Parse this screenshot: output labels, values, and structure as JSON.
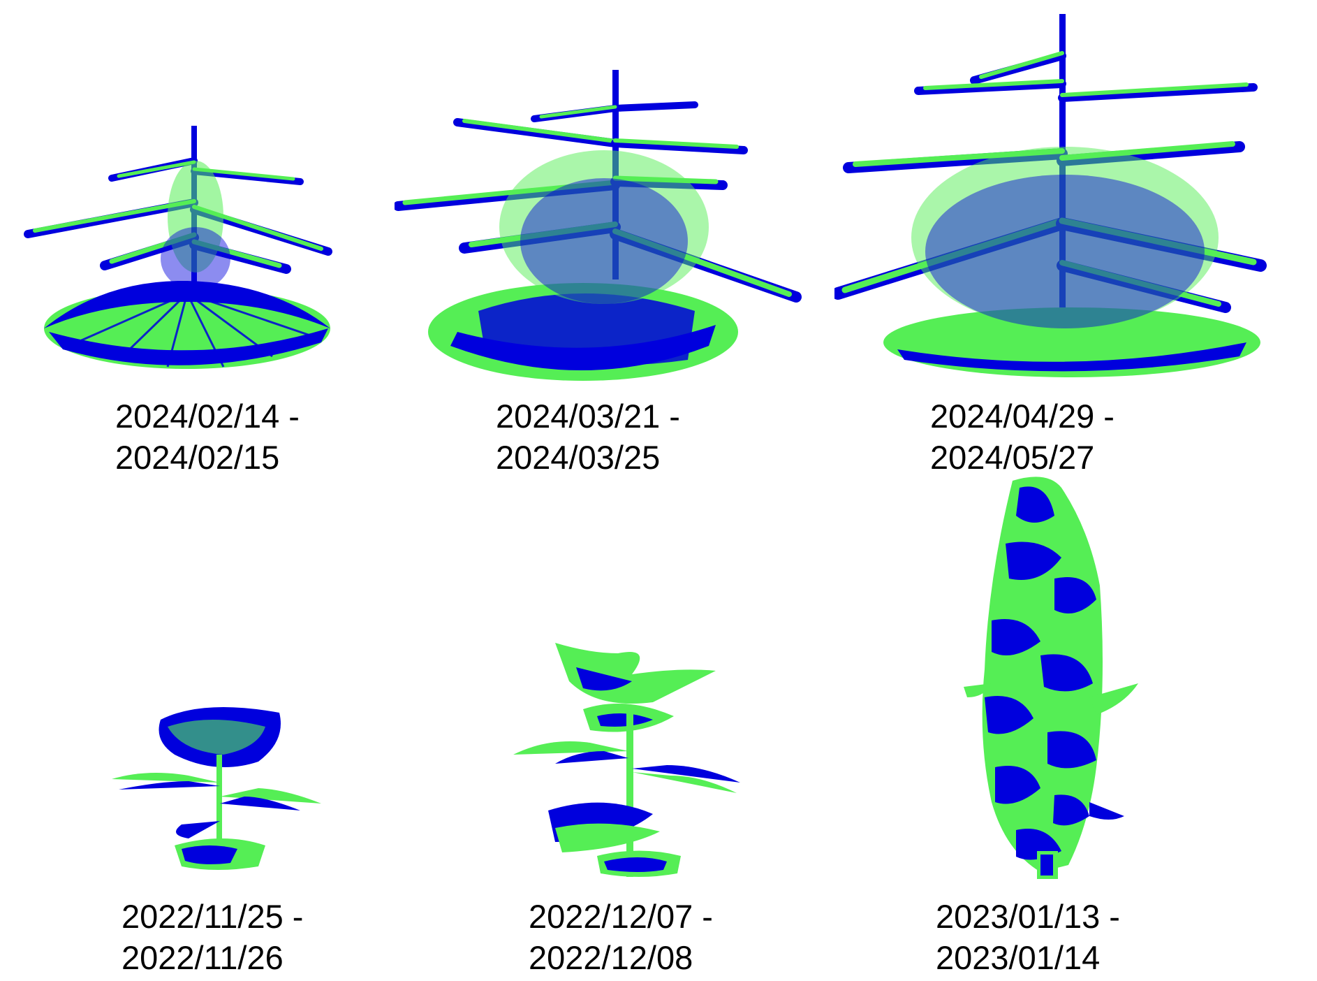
{
  "colors": {
    "foreground": "#55ee55",
    "background": "#0000dd"
  },
  "panels": [
    {
      "id": "p1",
      "kind": "conifer-with-pot",
      "caption_line1": "2024/02/14 -",
      "caption_line2": "2024/02/15"
    },
    {
      "id": "p2",
      "kind": "conifer-with-pot",
      "caption_line1": "2024/03/21 -",
      "caption_line2": "2024/03/25"
    },
    {
      "id": "p3",
      "kind": "conifer-with-pot",
      "caption_line1": "2024/04/29 -",
      "caption_line2": "2024/05/27"
    },
    {
      "id": "p4",
      "kind": "broadleaf",
      "caption_line1": "2022/11/25 -",
      "caption_line2": "2022/11/26"
    },
    {
      "id": "p5",
      "kind": "broadleaf",
      "caption_line1": "2022/12/07 -",
      "caption_line2": "2022/12/08"
    },
    {
      "id": "p6",
      "kind": "broadleaf-tall",
      "caption_line1": "2023/01/13 -",
      "caption_line2": "2023/01/14"
    }
  ]
}
